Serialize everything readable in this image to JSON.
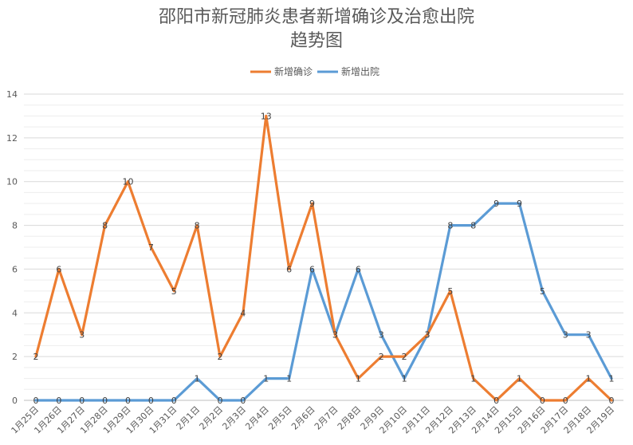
{
  "chart_data": {
    "type": "line",
    "title_lines": [
      "邵阳市新冠肺炎患者新增确诊及治愈出院",
      "趋势图"
    ],
    "xlabel": "",
    "ylabel": "",
    "ylim": [
      0,
      14
    ],
    "yticks": [
      0,
      2,
      4,
      6,
      8,
      10,
      12,
      14
    ],
    "grid": true,
    "legend_position": "top-center",
    "categories": [
      "1月25日",
      "1月26日",
      "1月27日",
      "1月28日",
      "1月29日",
      "1月30日",
      "1月31日",
      "2月1日",
      "2月2日",
      "2月3日",
      "2月4日",
      "2月5日",
      "2月6日",
      "2月7日",
      "2月8日",
      "2月9日",
      "2月10日",
      "2月11日",
      "2月12日",
      "2月13日",
      "2月14日",
      "2月15日",
      "2月16日",
      "2月17日",
      "2月18日",
      "2月19日"
    ],
    "series": [
      {
        "name": "新增确诊",
        "color": "#ED7D31",
        "values": [
          2,
          6,
          3,
          8,
          10,
          7,
          5,
          8,
          2,
          4,
          13,
          6,
          9,
          3,
          1,
          2,
          2,
          3,
          5,
          1,
          0,
          1,
          0,
          0,
          1,
          0
        ]
      },
      {
        "name": "新增出院",
        "color": "#5B9BD5",
        "values": [
          0,
          0,
          0,
          0,
          0,
          0,
          0,
          1,
          0,
          0,
          1,
          1,
          6,
          3,
          6,
          3,
          1,
          3,
          8,
          8,
          9,
          9,
          5,
          3,
          3,
          1
        ]
      }
    ]
  }
}
